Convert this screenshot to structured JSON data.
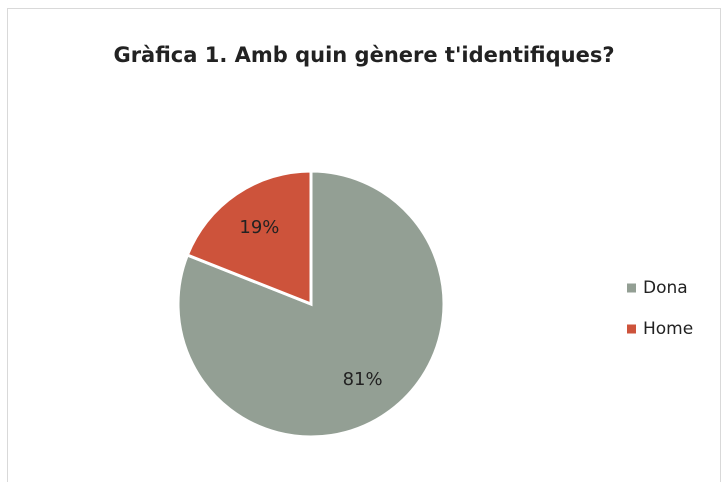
{
  "chart_data": {
    "type": "pie",
    "title": "Gràfica 1. Amb quin gènere t'identifiques?",
    "categories": [
      "Dona",
      "Home"
    ],
    "values": [
      81,
      19
    ],
    "value_labels": [
      "81%",
      "19%"
    ],
    "colors": [
      "#939f94",
      "#cd533b"
    ],
    "legend": "right"
  }
}
